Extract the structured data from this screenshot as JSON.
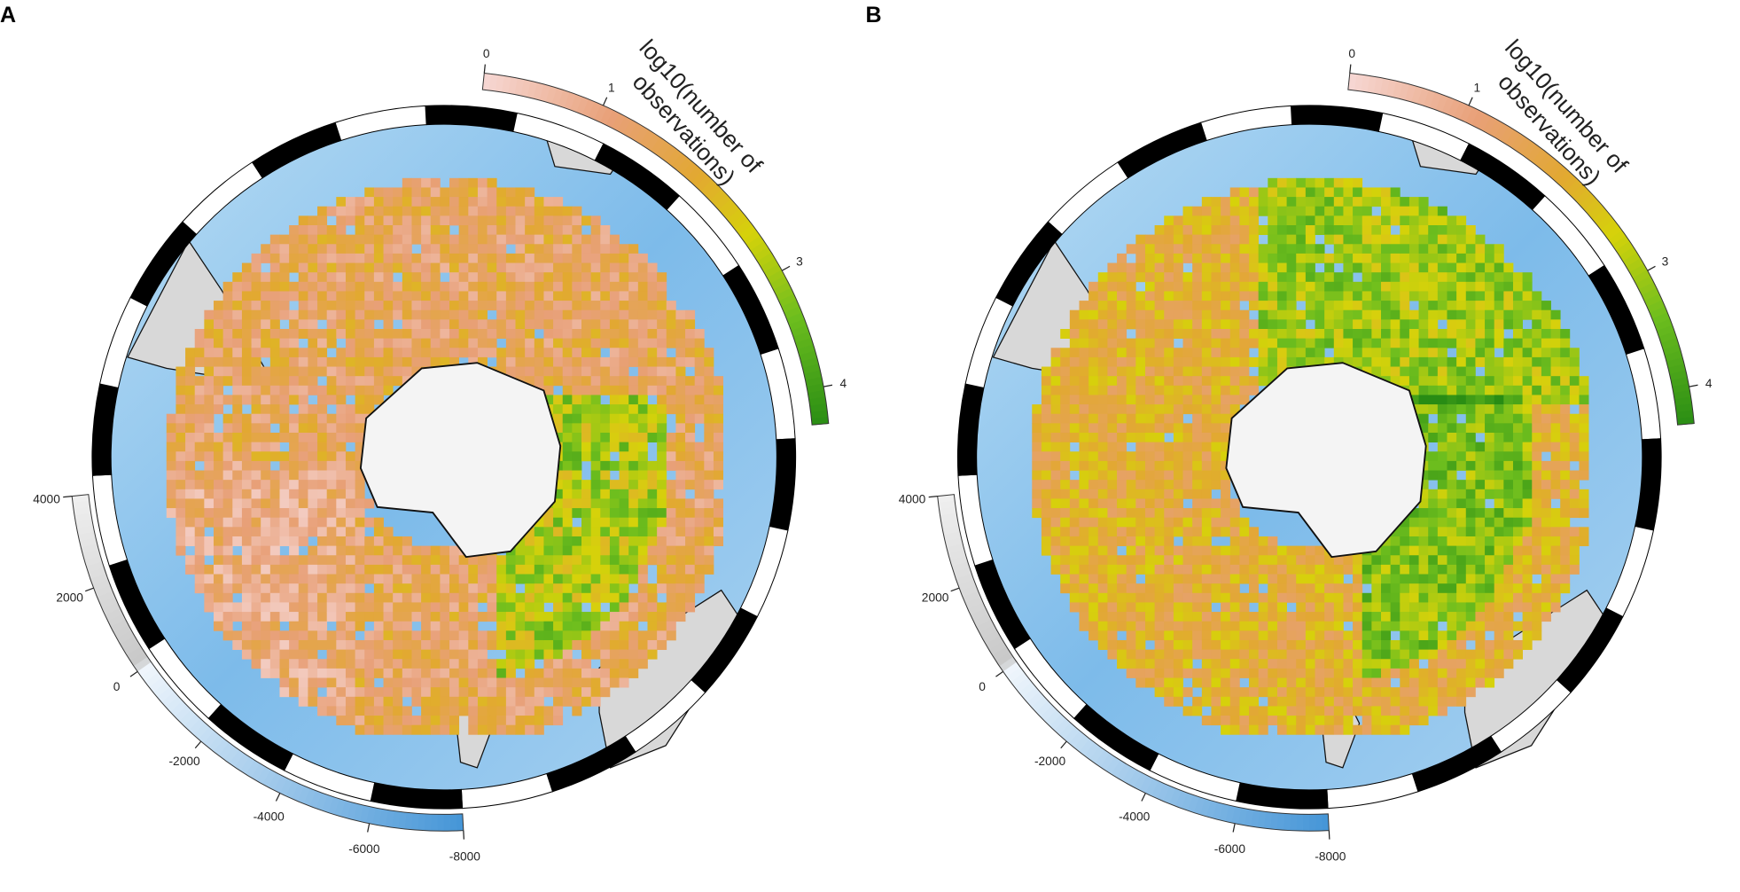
{
  "panels": [
    {
      "label": "A",
      "colorbar": {
        "title_lines": [
          "log10(number of",
          "observations)"
        ],
        "lim": [
          0,
          4.3
        ],
        "ticks": [
          0,
          1,
          3,
          4
        ]
      },
      "depthbar": {
        "lim": [
          -8000,
          4000
        ],
        "ticks": [
          4000,
          2000,
          0,
          -2000,
          -4000,
          -6000,
          -8000
        ]
      }
    },
    {
      "label": "B",
      "colorbar": {
        "title_lines": [
          "log10(number of",
          "observations)"
        ],
        "lim": [
          0,
          4.3
        ],
        "ticks": [
          0,
          1,
          3,
          4
        ]
      },
      "depthbar": {
        "lim": [
          -8000,
          4000
        ],
        "ticks": [
          4000,
          2000,
          0,
          -2000,
          -4000,
          -6000,
          -8000
        ]
      }
    }
  ]
}
